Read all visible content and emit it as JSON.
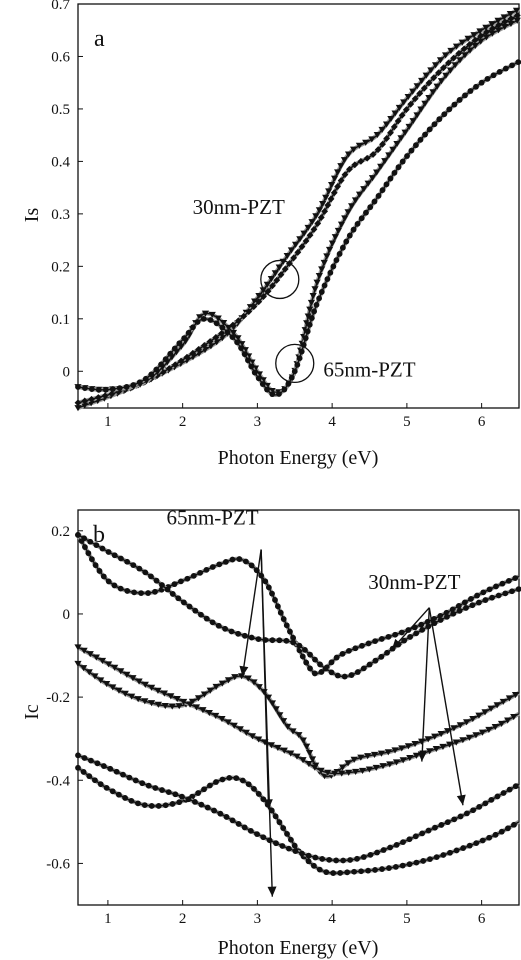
{
  "chart_data": [
    {
      "type": "line",
      "panel_label": "a",
      "xlabel": "Photon Energy (eV)",
      "ylabel": "Is",
      "xlim": [
        0.6,
        6.5
      ],
      "ylim": [
        -0.07,
        0.7
      ],
      "x_ticks": [
        "1",
        "2",
        "3",
        "4",
        "5",
        "6"
      ],
      "x_tick_values": [
        1,
        2,
        3,
        4,
        5,
        6
      ],
      "y_ticks": [
        "0",
        "0.1",
        "0.2",
        "0.3",
        "0.4",
        "0.5",
        "0.6",
        "0.7"
      ],
      "y_tick_values": [
        0,
        0.1,
        0.2,
        0.3,
        0.4,
        0.5,
        0.6,
        0.7
      ],
      "grid": false,
      "series": [
        {
          "marker": "triangle",
          "x": [
            0.6,
            1.5,
            2.5,
            3.0,
            3.4,
            3.8,
            4.2,
            4.6,
            5.0,
            5.5,
            6.0,
            6.5
          ],
          "y": [
            -0.07,
            -0.02,
            0.06,
            0.14,
            0.22,
            0.3,
            0.41,
            0.45,
            0.52,
            0.6,
            0.65,
            0.69
          ]
        },
        {
          "marker": "diamond",
          "x": [
            0.6,
            1.5,
            2.5,
            3.0,
            3.4,
            3.8,
            4.2,
            4.6,
            5.0,
            5.5,
            6.0,
            6.5
          ],
          "y": [
            -0.06,
            -0.02,
            0.07,
            0.13,
            0.2,
            0.28,
            0.38,
            0.42,
            0.5,
            0.58,
            0.64,
            0.68
          ]
        },
        {
          "marker": "triangle",
          "x": [
            0.6,
            1.0,
            1.5,
            2.0,
            2.3,
            2.7,
            3.0,
            3.25,
            3.5,
            3.8,
            4.2,
            4.6,
            5.0,
            5.5,
            6.0,
            6.5
          ],
          "y": [
            -0.03,
            -0.035,
            -0.02,
            0.05,
            0.11,
            0.07,
            0.0,
            -0.04,
            0.0,
            0.17,
            0.3,
            0.38,
            0.46,
            0.56,
            0.63,
            0.67
          ]
        },
        {
          "marker": "dot",
          "x": [
            0.6,
            1.0,
            1.5,
            2.0,
            2.3,
            2.7,
            3.0,
            3.25,
            3.5,
            3.8,
            4.2,
            4.6,
            5.0,
            5.5,
            6.0,
            6.5
          ],
          "y": [
            -0.03,
            -0.035,
            -0.015,
            0.06,
            0.1,
            0.06,
            -0.01,
            -0.045,
            0.0,
            0.13,
            0.25,
            0.33,
            0.41,
            0.49,
            0.55,
            0.59
          ]
        }
      ],
      "circles": [
        {
          "x": 3.3,
          "y": 0.175
        },
        {
          "x": 3.5,
          "y": 0.015
        }
      ],
      "annotations": [
        {
          "text": "30nm-PZT",
          "x": 2.75,
          "y": 0.3
        },
        {
          "text": "65nm-PZT",
          "x": 4.5,
          "y": -0.01
        }
      ]
    },
    {
      "type": "line",
      "panel_label": "b",
      "xlabel": "Photon Energy (eV)",
      "ylabel": "Ic",
      "xlim": [
        0.6,
        6.5
      ],
      "ylim": [
        -0.7,
        0.25
      ],
      "x_ticks": [
        "1",
        "2",
        "3",
        "4",
        "5",
        "6"
      ],
      "x_tick_values": [
        1,
        2,
        3,
        4,
        5,
        6
      ],
      "y_ticks": [
        "0.2",
        "0",
        "-0.2",
        "-0.4",
        "-0.6"
      ],
      "y_tick_values": [
        0.2,
        0,
        -0.2,
        -0.4,
        -0.6
      ],
      "grid": false,
      "series": [
        {
          "marker": "dot",
          "x": [
            0.6,
            1.0,
            1.5,
            2.0,
            2.5,
            2.8,
            3.1,
            3.4,
            3.7,
            3.85,
            4.1,
            4.5,
            5.0,
            5.5,
            6.0,
            6.5
          ],
          "y": [
            0.19,
            0.08,
            0.05,
            0.08,
            0.12,
            0.13,
            0.08,
            -0.03,
            -0.13,
            -0.14,
            -0.1,
            -0.07,
            -0.04,
            0.0,
            0.05,
            0.09
          ]
        },
        {
          "marker": "dot",
          "x": [
            0.6,
            1.0,
            1.5,
            2.0,
            2.5,
            3.0,
            3.5,
            3.9,
            4.2,
            4.6,
            5.0,
            5.5,
            6.0,
            6.5
          ],
          "y": [
            0.19,
            0.15,
            0.1,
            0.03,
            -0.03,
            -0.06,
            -0.07,
            -0.13,
            -0.15,
            -0.11,
            -0.06,
            -0.01,
            0.03,
            0.06
          ]
        },
        {
          "marker": "triangle",
          "x": [
            0.6,
            1.0,
            1.5,
            2.0,
            2.5,
            2.8,
            3.1,
            3.4,
            3.6,
            3.9,
            4.3,
            4.8,
            5.3,
            5.8,
            6.2,
            6.5
          ],
          "y": [
            -0.12,
            -0.17,
            -0.21,
            -0.22,
            -0.17,
            -0.15,
            -0.19,
            -0.27,
            -0.3,
            -0.39,
            -0.35,
            -0.33,
            -0.3,
            -0.26,
            -0.22,
            -0.19
          ]
        },
        {
          "marker": "triangle",
          "x": [
            0.6,
            1.0,
            1.5,
            2.0,
            2.5,
            3.0,
            3.5,
            3.9,
            4.3,
            4.8,
            5.3,
            5.8,
            6.2,
            6.5
          ],
          "y": [
            -0.08,
            -0.12,
            -0.17,
            -0.21,
            -0.25,
            -0.3,
            -0.34,
            -0.38,
            -0.38,
            -0.36,
            -0.33,
            -0.3,
            -0.27,
            -0.24
          ]
        },
        {
          "marker": "dot",
          "x": [
            0.6,
            1.0,
            1.5,
            2.0,
            2.5,
            2.8,
            3.1,
            3.4,
            3.6,
            3.9,
            4.3,
            4.8,
            5.3,
            5.8,
            6.2,
            6.5
          ],
          "y": [
            -0.37,
            -0.42,
            -0.46,
            -0.45,
            -0.4,
            -0.4,
            -0.45,
            -0.53,
            -0.58,
            -0.62,
            -0.62,
            -0.61,
            -0.59,
            -0.56,
            -0.53,
            -0.5
          ]
        },
        {
          "marker": "dot",
          "x": [
            0.6,
            1.0,
            1.5,
            2.0,
            2.5,
            3.0,
            3.5,
            3.9,
            4.3,
            4.8,
            5.3,
            5.8,
            6.2,
            6.5
          ],
          "y": [
            -0.34,
            -0.37,
            -0.41,
            -0.44,
            -0.48,
            -0.53,
            -0.57,
            -0.59,
            -0.59,
            -0.56,
            -0.52,
            -0.48,
            -0.44,
            -0.41
          ]
        }
      ],
      "annotations": [
        {
          "text": "65nm-PZT",
          "x": 2.4,
          "y": 0.215
        },
        {
          "text": "30nm-PZT",
          "x": 5.1,
          "y": 0.06
        }
      ],
      "arrows": [
        {
          "from": [
            3.05,
            0.155
          ],
          "to": [
            2.8,
            -0.15
          ]
        },
        {
          "from": [
            3.05,
            0.155
          ],
          "to": [
            3.15,
            -0.47
          ]
        },
        {
          "from": [
            3.05,
            0.155
          ],
          "to": [
            3.2,
            -0.68
          ]
        },
        {
          "from": [
            5.3,
            0.015
          ],
          "to": [
            4.8,
            -0.085
          ]
        },
        {
          "from": [
            5.3,
            0.015
          ],
          "to": [
            5.2,
            -0.355
          ]
        },
        {
          "from": [
            5.3,
            0.015
          ],
          "to": [
            5.75,
            -0.46
          ]
        }
      ]
    }
  ]
}
